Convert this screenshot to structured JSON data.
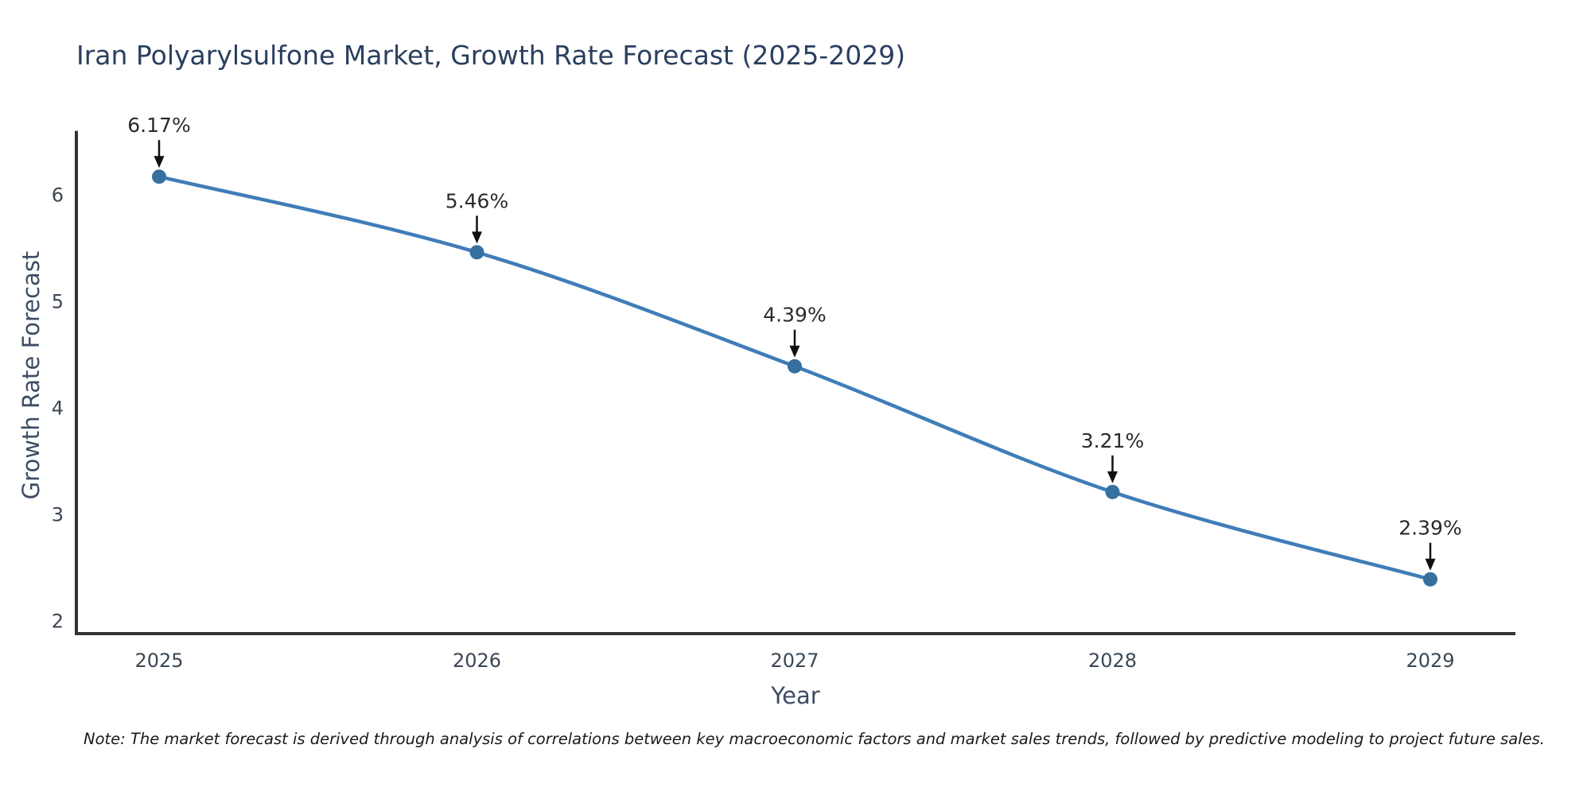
{
  "title": "Iran Polyarylsulfone Market, Growth Rate Forecast (2025-2029)",
  "note": "Note: The market forecast is derived through analysis of correlations between key macroeconomic factors and market sales trends, followed by predictive modeling to project future sales.",
  "chart_data": {
    "type": "line",
    "title": "Iran Polyarylsulfone Market, Growth Rate Forecast (2025-2029)",
    "categories": [
      "2025",
      "2026",
      "2027",
      "2028",
      "2029"
    ],
    "values": [
      6.17,
      5.46,
      4.39,
      3.21,
      2.39
    ],
    "labels": [
      "6.17%",
      "5.46%",
      "4.39%",
      "3.21%",
      "2.39%"
    ],
    "xlabel": "Year",
    "ylabel": "Growth Rate Forecast",
    "ylim": [
      2,
      6.6
    ],
    "yticks": [
      2,
      3,
      4,
      5,
      6
    ],
    "grid": false,
    "legend": "none",
    "colors": {
      "line": "#3f7db8",
      "marker": "#35709e",
      "axis": "#333333",
      "tick_text": "#3b4754",
      "annotation_text": "#2b2b2b",
      "arrow": "#111111",
      "title_text": "#2a3f5f"
    }
  }
}
